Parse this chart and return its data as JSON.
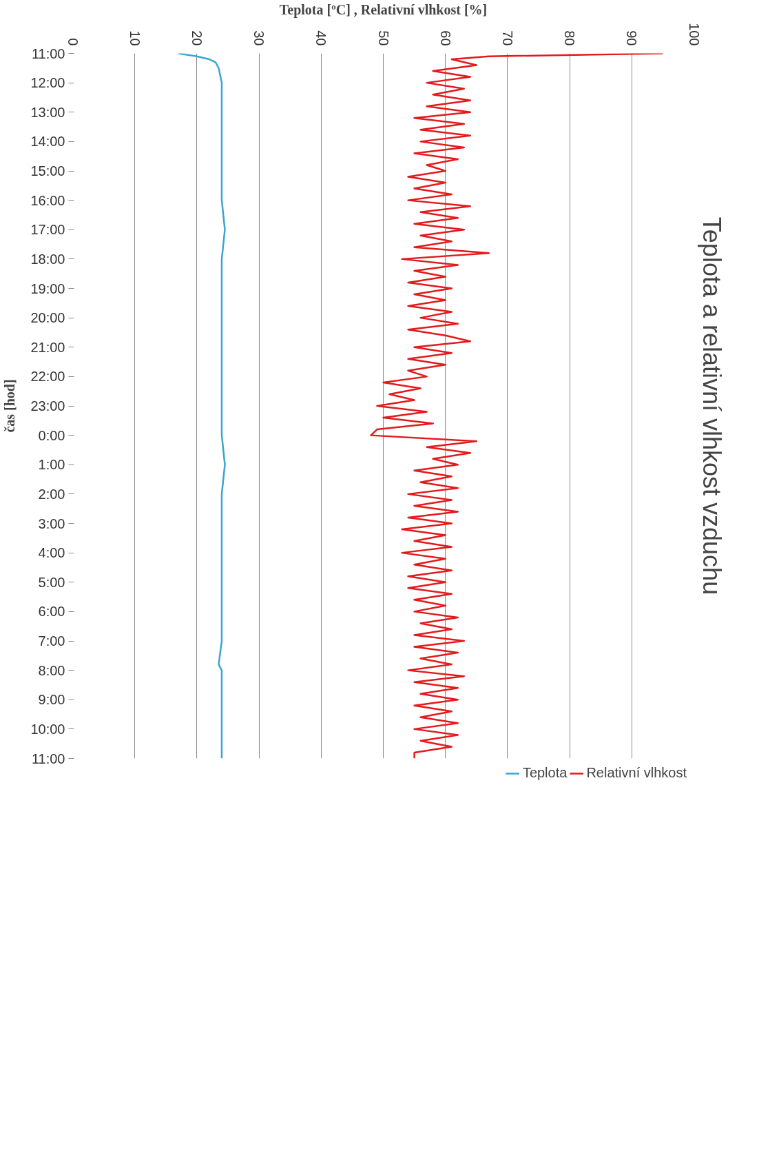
{
  "chart_data": {
    "type": "line",
    "orientation": "horizontal",
    "title": "Teplota a relativní vlhkost vzduchu",
    "xlabel": "Teplota [ºC] , Relativní vlhkost [%]",
    "ylabel": "čas [hod]",
    "xlim": [
      0,
      100
    ],
    "xticks": [
      0,
      10,
      20,
      30,
      40,
      50,
      60,
      70,
      80,
      90,
      100
    ],
    "ylim": [
      "2000-01-02T11:00",
      "2000-01-01T11:00"
    ],
    "yticks": [
      {
        "value": "2000-01-01T11:00",
        "label": "11:00"
      },
      {
        "value": "2000-01-01T12:00",
        "label": "12:00"
      },
      {
        "value": "2000-01-01T13:00",
        "label": "13:00"
      },
      {
        "value": "2000-01-01T14:00",
        "label": "14:00"
      },
      {
        "value": "2000-01-01T15:00",
        "label": "15:00"
      },
      {
        "value": "2000-01-01T16:00",
        "label": "16:00"
      },
      {
        "value": "2000-01-01T17:00",
        "label": "17:00"
      },
      {
        "value": "2000-01-01T18:00",
        "label": "18:00"
      },
      {
        "value": "2000-01-01T19:00",
        "label": "19:00"
      },
      {
        "value": "2000-01-01T20:00",
        "label": "20:00"
      },
      {
        "value": "2000-01-01T21:00",
        "label": "21:00"
      },
      {
        "value": "2000-01-01T22:00",
        "label": "22:00"
      },
      {
        "value": "2000-01-01T23:00",
        "label": "23:00"
      },
      {
        "value": "2000-01-02T00:00",
        "label": "0:00"
      },
      {
        "value": "2000-01-02T01:00",
        "label": "1:00"
      },
      {
        "value": "2000-01-02T02:00",
        "label": "2:00"
      },
      {
        "value": "2000-01-02T03:00",
        "label": "3:00"
      },
      {
        "value": "2000-01-02T04:00",
        "label": "4:00"
      },
      {
        "value": "2000-01-02T05:00",
        "label": "5:00"
      },
      {
        "value": "2000-01-02T06:00",
        "label": "6:00"
      },
      {
        "value": "2000-01-02T07:00",
        "label": "7:00"
      },
      {
        "value": "2000-01-02T08:00",
        "label": "8:00"
      },
      {
        "value": "2000-01-02T09:00",
        "label": "9:00"
      },
      {
        "value": "2000-01-02T10:00",
        "label": "10:00"
      },
      {
        "value": "2000-01-02T11:00",
        "label": "11:00"
      }
    ],
    "grid": "x",
    "legend": "bottom",
    "line_style": "solid",
    "series": [
      {
        "name": "Teplota",
        "color": "#3aa6d0",
        "x": [
          "2000-01-01T11:00",
          "2000-01-01T11:06",
          "2000-01-01T11:12",
          "2000-01-01T11:18",
          "2000-01-01T11:30",
          "2000-01-01T12:00",
          "2000-01-01T13:00",
          "2000-01-01T14:00",
          "2000-01-01T15:00",
          "2000-01-01T16:00",
          "2000-01-01T17:00",
          "2000-01-01T18:00",
          "2000-01-01T19:00",
          "2000-01-01T20:00",
          "2000-01-01T21:00",
          "2000-01-01T22:00",
          "2000-01-01T23:00",
          "2000-01-02T00:00",
          "2000-01-02T01:00",
          "2000-01-02T02:00",
          "2000-01-02T03:00",
          "2000-01-02T04:00",
          "2000-01-02T05:00",
          "2000-01-02T06:00",
          "2000-01-02T07:00",
          "2000-01-02T07:48",
          "2000-01-02T08:00",
          "2000-01-02T09:00",
          "2000-01-02T10:00",
          "2000-01-02T11:00"
        ],
        "values": [
          17,
          20,
          22,
          23,
          23.5,
          24,
          24,
          24,
          24,
          24,
          24.5,
          24,
          24,
          24,
          24,
          24,
          24,
          24,
          24.5,
          24,
          24,
          24,
          24,
          24,
          24,
          23.5,
          24,
          24,
          24,
          24
        ]
      },
      {
        "name": "Relativní vlhkost",
        "color": "#e31a1c",
        "x": [
          "2000-01-01T11:00",
          "2000-01-01T11:06",
          "2000-01-01T11:12",
          "2000-01-01T11:24",
          "2000-01-01T11:36",
          "2000-01-01T11:48",
          "2000-01-01T12:00",
          "2000-01-01T12:12",
          "2000-01-01T12:24",
          "2000-01-01T12:36",
          "2000-01-01T12:48",
          "2000-01-01T13:00",
          "2000-01-01T13:12",
          "2000-01-01T13:24",
          "2000-01-01T13:36",
          "2000-01-01T13:48",
          "2000-01-01T14:00",
          "2000-01-01T14:12",
          "2000-01-01T14:24",
          "2000-01-01T14:36",
          "2000-01-01T14:48",
          "2000-01-01T15:00",
          "2000-01-01T15:12",
          "2000-01-01T15:24",
          "2000-01-01T15:36",
          "2000-01-01T15:48",
          "2000-01-01T16:00",
          "2000-01-01T16:12",
          "2000-01-01T16:24",
          "2000-01-01T16:36",
          "2000-01-01T16:48",
          "2000-01-01T17:00",
          "2000-01-01T17:12",
          "2000-01-01T17:24",
          "2000-01-01T17:36",
          "2000-01-01T17:48",
          "2000-01-01T18:00",
          "2000-01-01T18:12",
          "2000-01-01T18:24",
          "2000-01-01T18:36",
          "2000-01-01T18:48",
          "2000-01-01T19:00",
          "2000-01-01T19:12",
          "2000-01-01T19:24",
          "2000-01-01T19:36",
          "2000-01-01T19:48",
          "2000-01-01T20:00",
          "2000-01-01T20:12",
          "2000-01-01T20:24",
          "2000-01-01T20:36",
          "2000-01-01T20:48",
          "2000-01-01T21:00",
          "2000-01-01T21:12",
          "2000-01-01T21:24",
          "2000-01-01T21:36",
          "2000-01-01T21:48",
          "2000-01-01T22:00",
          "2000-01-01T22:12",
          "2000-01-01T22:24",
          "2000-01-01T22:36",
          "2000-01-01T22:48",
          "2000-01-01T23:00",
          "2000-01-01T23:12",
          "2000-01-01T23:24",
          "2000-01-01T23:36",
          "2000-01-01T23:48",
          "2000-01-02T00:00",
          "2000-01-02T00:12",
          "2000-01-02T00:24",
          "2000-01-02T00:36",
          "2000-01-02T00:48",
          "2000-01-02T01:00",
          "2000-01-02T01:12",
          "2000-01-02T01:24",
          "2000-01-02T01:36",
          "2000-01-02T01:48",
          "2000-01-02T02:00",
          "2000-01-02T02:12",
          "2000-01-02T02:24",
          "2000-01-02T02:36",
          "2000-01-02T02:48",
          "2000-01-02T03:00",
          "2000-01-02T03:12",
          "2000-01-02T03:24",
          "2000-01-02T03:36",
          "2000-01-02T03:48",
          "2000-01-02T04:00",
          "2000-01-02T04:12",
          "2000-01-02T04:24",
          "2000-01-02T04:36",
          "2000-01-02T04:48",
          "2000-01-02T05:00",
          "2000-01-02T05:12",
          "2000-01-02T05:24",
          "2000-01-02T05:36",
          "2000-01-02T05:48",
          "2000-01-02T06:00",
          "2000-01-02T06:12",
          "2000-01-02T06:24",
          "2000-01-02T06:36",
          "2000-01-02T06:48",
          "2000-01-02T07:00",
          "2000-01-02T07:12",
          "2000-01-02T07:24",
          "2000-01-02T07:36",
          "2000-01-02T07:48",
          "2000-01-02T08:00",
          "2000-01-02T08:12",
          "2000-01-02T08:24",
          "2000-01-02T08:36",
          "2000-01-02T08:48",
          "2000-01-02T09:00",
          "2000-01-02T09:12",
          "2000-01-02T09:24",
          "2000-01-02T09:36",
          "2000-01-02T09:48",
          "2000-01-02T10:00",
          "2000-01-02T10:12",
          "2000-01-02T10:24",
          "2000-01-02T10:36",
          "2000-01-02T10:48",
          "2000-01-02T11:00"
        ],
        "values": [
          95,
          67,
          61,
          65,
          58,
          64,
          57,
          63,
          58,
          64,
          57,
          64,
          55,
          63,
          56,
          64,
          56,
          63,
          55,
          62,
          57,
          60,
          54,
          60,
          55,
          61,
          54,
          64,
          56,
          62,
          55,
          63,
          56,
          61,
          55,
          67,
          53,
          62,
          55,
          60,
          54,
          61,
          55,
          60,
          54,
          61,
          56,
          62,
          54,
          60,
          64,
          55,
          61,
          54,
          60,
          54,
          57,
          50,
          56,
          51,
          55,
          49,
          57,
          50,
          58,
          49,
          48,
          65,
          57,
          64,
          58,
          62,
          55,
          61,
          56,
          62,
          54,
          61,
          55,
          62,
          54,
          61,
          53,
          60,
          55,
          61,
          53,
          60,
          55,
          61,
          54,
          60,
          54,
          61,
          55,
          60,
          55,
          62,
          56,
          61,
          55,
          63,
          55,
          62,
          56,
          61,
          54,
          63,
          55,
          62,
          56,
          62,
          55,
          61,
          56,
          62,
          55,
          62,
          56,
          61,
          55,
          55
        ]
      }
    ]
  }
}
